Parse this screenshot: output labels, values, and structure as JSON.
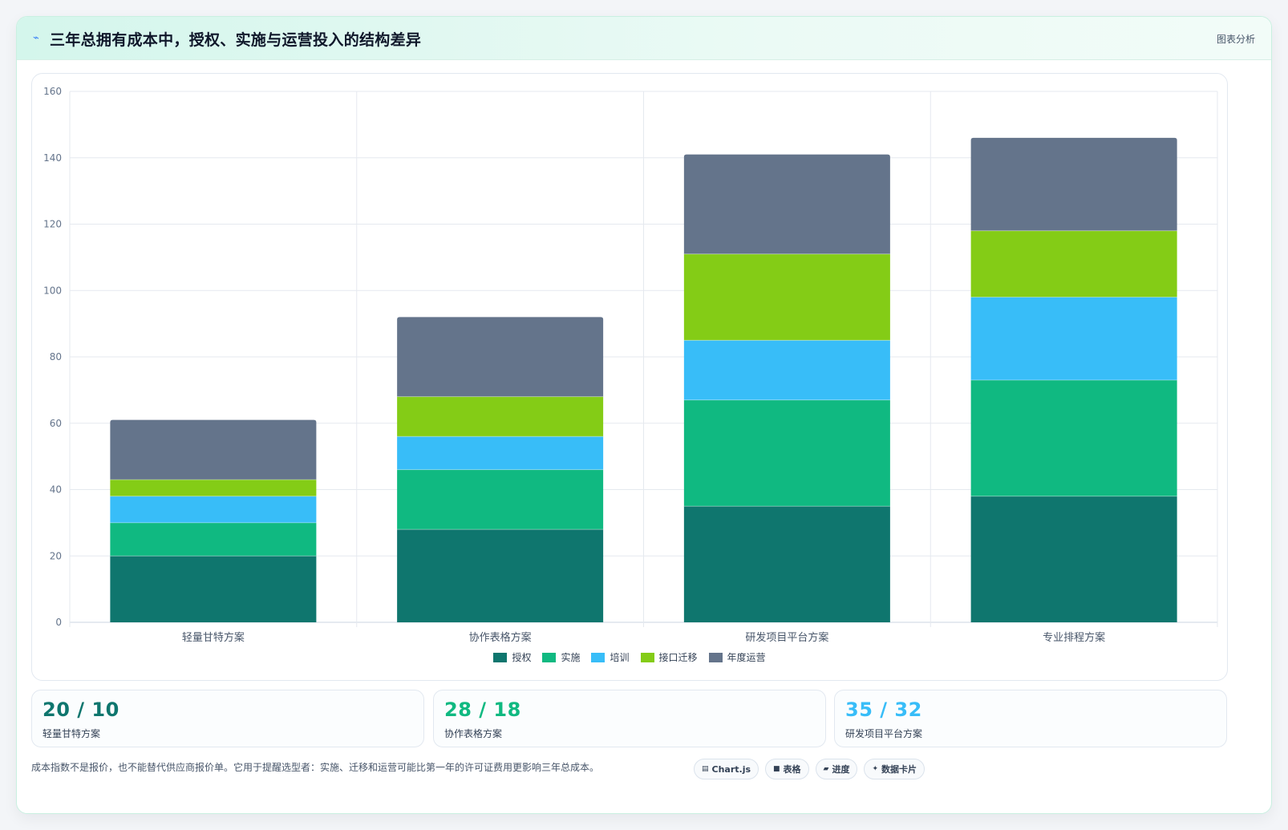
{
  "header": {
    "title": "三年总拥有成本中，授权、实施与运营投入的结构差异",
    "action_label": "图表分析",
    "icon": "bolt-icon"
  },
  "chart_data": {
    "type": "bar",
    "stacked": true,
    "title": "",
    "xlabel": "",
    "ylabel": "",
    "ylim": [
      0,
      160
    ],
    "yticks": [
      0,
      20,
      40,
      60,
      80,
      100,
      120,
      140,
      160
    ],
    "grid": true,
    "legend_position": "bottom",
    "categories": [
      "轻量甘特方案",
      "协作表格方案",
      "研发项目平台方案",
      "专业排程方案"
    ],
    "series": [
      {
        "name": "授权",
        "color": "#0f766e",
        "values": [
          20,
          28,
          35,
          38
        ]
      },
      {
        "name": "实施",
        "color": "#10b981",
        "values": [
          10,
          18,
          32,
          35
        ]
      },
      {
        "name": "培训",
        "color": "#38bdf8",
        "values": [
          8,
          10,
          18,
          25
        ]
      },
      {
        "name": "接口迁移",
        "color": "#84cc16",
        "values": [
          5,
          12,
          26,
          20
        ]
      },
      {
        "name": "年度运营",
        "color": "#64748b",
        "values": [
          18,
          24,
          30,
          28
        ]
      }
    ]
  },
  "stat_cards": [
    {
      "value": "20 / 10",
      "label": "轻量甘特方案",
      "color": "#0f766e"
    },
    {
      "value": "28 / 18",
      "label": "协作表格方案",
      "color": "#10b981"
    },
    {
      "value": "35 / 32",
      "label": "研发项目平台方案",
      "color": "#38bdf8"
    }
  ],
  "footnote": "成本指数不是报价，也不能替代供应商报价单。它用于提醒选型者：实施、迁移和运营可能比第一年的许可证费用更影响三年总成本。",
  "chips": [
    {
      "icon": "chart-icon",
      "glyph": "▤",
      "label": "Chart.js"
    },
    {
      "icon": "table-icon",
      "glyph": "■",
      "label": "表格"
    },
    {
      "icon": "progress-icon",
      "glyph": "▰",
      "label": "进度"
    },
    {
      "icon": "sparkle-icon",
      "glyph": "✦",
      "label": "数据卡片"
    }
  ]
}
